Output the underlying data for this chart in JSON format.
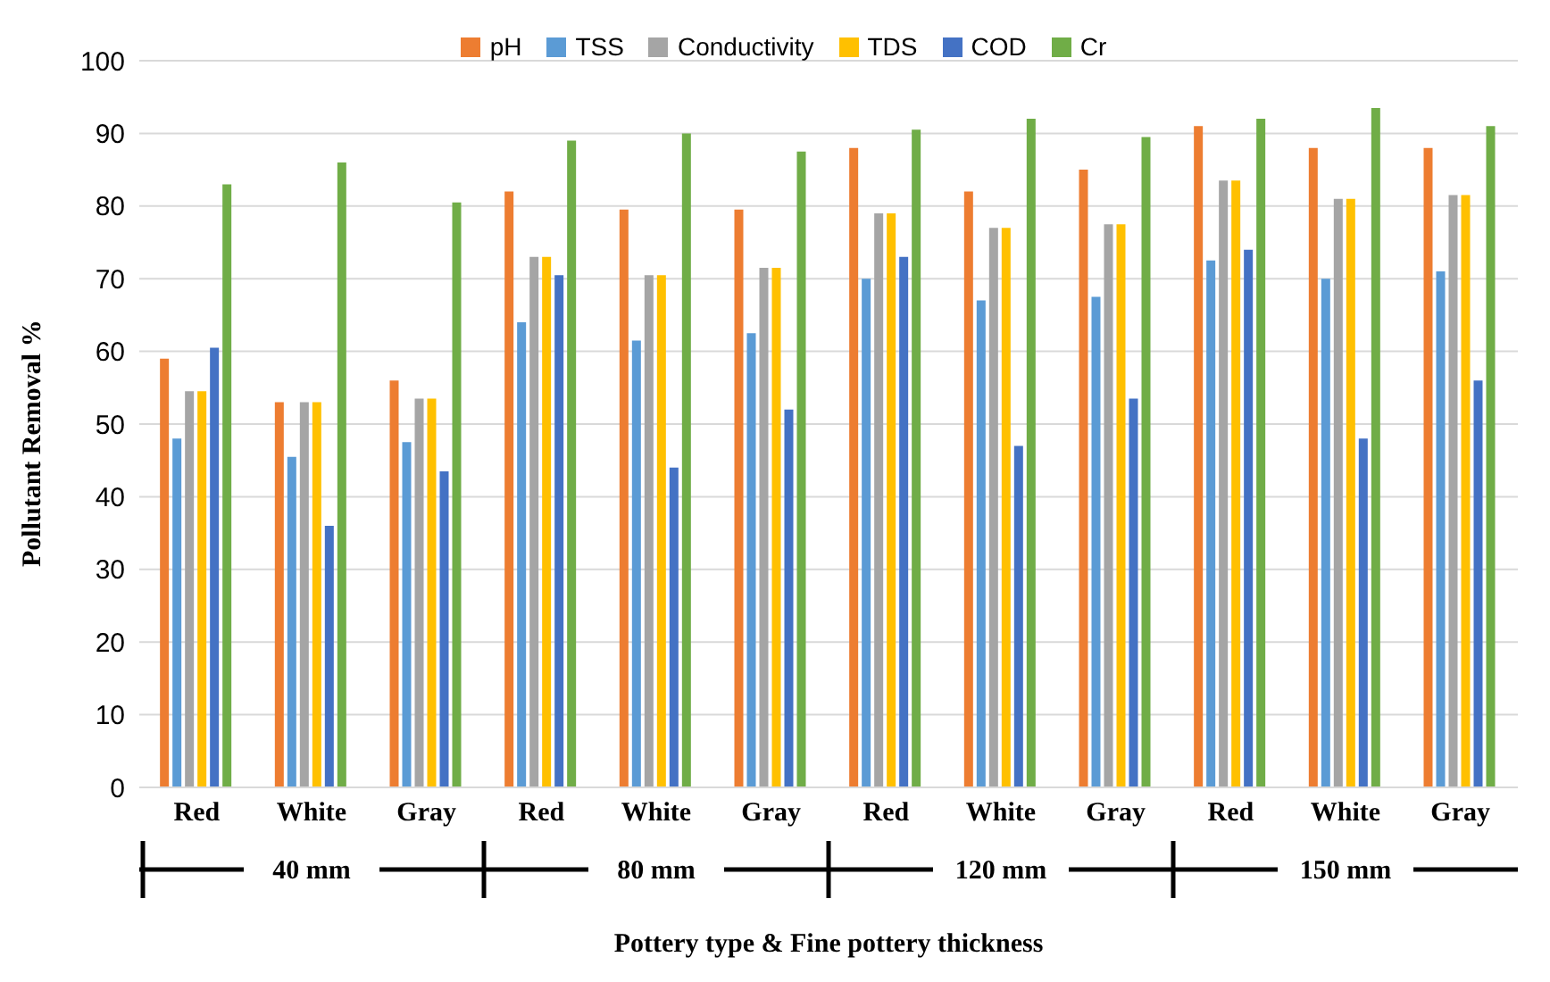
{
  "chart_data": {
    "type": "bar",
    "xlabel": "Pottery type & Fine pottery thickness",
    "ylabel": "Pollutant Removal %",
    "categories": [
      "Red",
      "White",
      "Gray",
      "Red",
      "White",
      "Gray",
      "Red",
      "White",
      "Gray",
      "Red",
      "White",
      "Gray"
    ],
    "annotations": [
      "40 mm",
      "80 mm",
      "120 mm",
      "150 mm"
    ],
    "series": [
      {
        "name": "pH",
        "color": "#ed7d31",
        "values": [
          59,
          53,
          56,
          82,
          79.5,
          79.5,
          88,
          82,
          85,
          91,
          88,
          88
        ]
      },
      {
        "name": "TSS",
        "color": "#5b9bd5",
        "values": [
          48,
          45.5,
          47.5,
          64,
          61.5,
          62.5,
          70,
          67,
          67.5,
          72.5,
          70,
          71
        ]
      },
      {
        "name": "Conductivity",
        "color": "#a5a5a5",
        "values": [
          54.5,
          53,
          53.5,
          73,
          70.5,
          71.5,
          79,
          77,
          77.5,
          83.5,
          81,
          81.5
        ]
      },
      {
        "name": "TDS",
        "color": "#ffc000",
        "values": [
          54.5,
          53,
          53.5,
          73,
          70.5,
          71.5,
          79,
          77,
          77.5,
          83.5,
          81,
          81.5
        ]
      },
      {
        "name": "COD",
        "color": "#4472c4",
        "values": [
          60.5,
          36,
          43.5,
          70.5,
          44,
          52,
          73,
          47,
          53.5,
          74,
          48,
          56
        ]
      },
      {
        "name": "Cr",
        "color": "#70ad47",
        "values": [
          83,
          86,
          80.5,
          89,
          90,
          87.5,
          90.5,
          92,
          89.5,
          92,
          93.5,
          91
        ]
      }
    ],
    "ylim": [
      0,
      100
    ],
    "yticks": [
      0,
      10,
      20,
      30,
      40,
      50,
      60,
      70,
      80,
      90,
      100
    ],
    "grid": "y",
    "legend": "top"
  }
}
